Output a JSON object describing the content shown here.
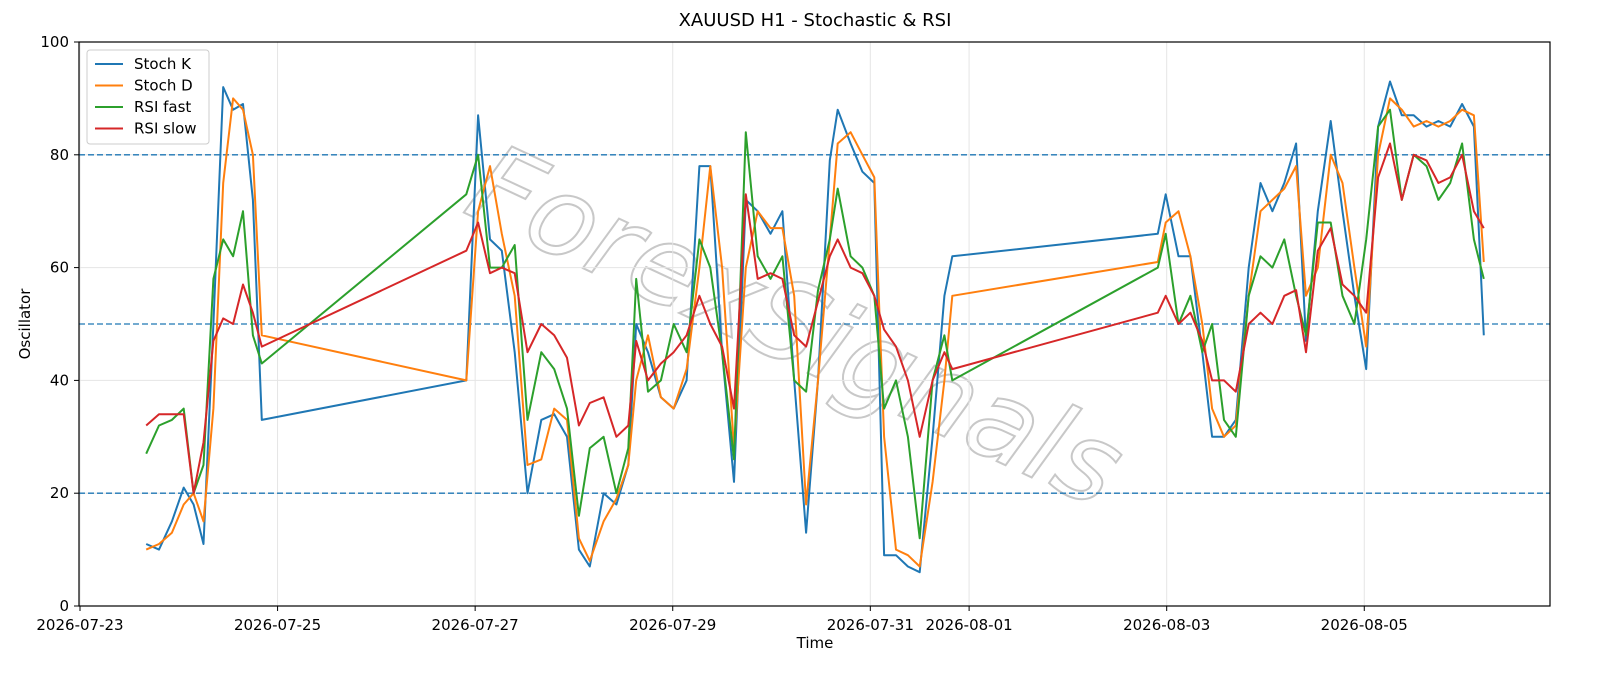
{
  "chart_data": {
    "type": "line",
    "title": "XAUUSD H1 - Stochastic & RSI",
    "xlabel": "Time",
    "ylabel": "Oscillator",
    "watermark": "ForexSignals",
    "x": [
      0.67,
      0.8,
      0.93,
      1.05,
      1.15,
      1.25,
      1.35,
      1.45,
      1.55,
      1.65,
      1.75,
      1.84,
      3.91,
      4.03,
      4.15,
      4.27,
      4.4,
      4.53,
      4.67,
      4.8,
      4.93,
      5.05,
      5.16,
      5.3,
      5.43,
      5.55,
      5.63,
      5.75,
      5.88,
      6.01,
      6.14,
      6.27,
      6.38,
      6.5,
      6.62,
      6.74,
      6.86,
      6.99,
      7.11,
      7.23,
      7.35,
      7.47,
      7.59,
      7.67,
      7.8,
      7.92,
      8.04,
      8.14,
      8.26,
      8.38,
      8.5,
      8.63,
      8.75,
      8.83,
      10.91,
      10.99,
      11.12,
      11.24,
      11.36,
      11.46,
      11.58,
      11.7,
      11.83,
      11.95,
      12.07,
      12.19,
      12.31,
      12.41,
      12.53,
      12.66,
      12.78,
      12.9,
      13.02,
      13.14,
      13.26,
      13.38,
      13.5,
      13.63,
      13.75,
      13.87,
      13.99,
      14.11,
      14.21
    ],
    "series": [
      {
        "name": "Stoch K",
        "color": "#1f77b4",
        "values": [
          11,
          10,
          15,
          21,
          18,
          11,
          50,
          92,
          88,
          89,
          72,
          33,
          40,
          87,
          65,
          63,
          45,
          20,
          33,
          34,
          30,
          10,
          7,
          20,
          18,
          25,
          50,
          45,
          37,
          35,
          40,
          78,
          78,
          45,
          22,
          72,
          70,
          66,
          70,
          40,
          13,
          40,
          79,
          88,
          82,
          77,
          75,
          9,
          9,
          7,
          6,
          30,
          55,
          62,
          66,
          73,
          62,
          62,
          45,
          30,
          30,
          33,
          60,
          75,
          70,
          75,
          82,
          47,
          70,
          86,
          70,
          55,
          42,
          85,
          93,
          87,
          87,
          85,
          86,
          85,
          89,
          85,
          48
        ]
      },
      {
        "name": "Stoch D",
        "color": "#ff7f0e",
        "values": [
          10,
          11,
          13,
          18,
          20,
          15,
          35,
          75,
          90,
          88,
          80,
          48,
          40,
          70,
          78,
          66,
          55,
          25,
          26,
          35,
          33,
          12,
          8,
          15,
          19,
          25,
          40,
          48,
          37,
          35,
          42,
          60,
          78,
          60,
          28,
          60,
          70,
          67,
          67,
          55,
          18,
          40,
          65,
          82,
          84,
          80,
          76,
          30,
          10,
          9,
          7,
          22,
          40,
          55,
          61,
          68,
          70,
          62,
          50,
          35,
          30,
          32,
          55,
          70,
          72,
          74,
          78,
          55,
          60,
          80,
          75,
          60,
          46,
          80,
          90,
          88,
          85,
          86,
          85,
          86,
          88,
          87,
          61
        ]
      },
      {
        "name": "RSI fast",
        "color": "#2ca02c",
        "values": [
          27,
          32,
          33,
          35,
          20,
          25,
          58,
          65,
          62,
          70,
          48,
          43,
          73,
          80,
          60,
          60,
          64,
          33,
          45,
          42,
          35,
          16,
          28,
          30,
          20,
          28,
          58,
          38,
          40,
          50,
          45,
          65,
          60,
          45,
          26,
          84,
          62,
          58,
          62,
          40,
          38,
          56,
          65,
          74,
          62,
          60,
          55,
          35,
          40,
          30,
          12,
          40,
          48,
          40,
          60,
          66,
          50,
          55,
          45,
          50,
          33,
          30,
          55,
          62,
          60,
          65,
          55,
          48,
          68,
          68,
          55,
          50,
          65,
          85,
          88,
          72,
          80,
          78,
          72,
          75,
          82,
          65,
          58
        ]
      },
      {
        "name": "RSI slow",
        "color": "#d62728",
        "values": [
          32,
          34,
          34,
          34,
          20,
          29,
          47,
          51,
          50,
          57,
          52,
          46,
          63,
          68,
          59,
          60,
          59,
          45,
          50,
          48,
          44,
          32,
          36,
          37,
          30,
          32,
          47,
          40,
          43,
          45,
          48,
          55,
          50,
          46,
          35,
          73,
          58,
          59,
          58,
          48,
          46,
          54,
          62,
          65,
          60,
          59,
          55,
          49,
          46,
          40,
          30,
          40,
          45,
          42,
          52,
          55,
          50,
          52,
          47,
          40,
          40,
          38,
          50,
          52,
          50,
          55,
          56,
          45,
          63,
          67,
          57,
          55,
          52,
          76,
          82,
          72,
          80,
          79,
          75,
          76,
          80,
          70,
          67
        ]
      }
    ],
    "xlim": [
      -0.01,
      14.88
    ],
    "xticks": [
      {
        "value": 0,
        "label": "2026-07-23"
      },
      {
        "value": 2,
        "label": "2026-07-25"
      },
      {
        "value": 4,
        "label": "2026-07-27"
      },
      {
        "value": 6,
        "label": "2026-07-29"
      },
      {
        "value": 8,
        "label": "2026-07-31"
      },
      {
        "value": 9,
        "label": "2026-08-01"
      },
      {
        "value": 11,
        "label": "2026-08-03"
      },
      {
        "value": 13,
        "label": "2026-08-05"
      }
    ],
    "ylim": [
      0,
      100
    ],
    "yticks": [
      0,
      20,
      40,
      60,
      80,
      100
    ],
    "hlines": [
      20,
      50,
      80
    ],
    "hline_color": "#1f77b4",
    "grid": true,
    "legend": "upper left"
  }
}
